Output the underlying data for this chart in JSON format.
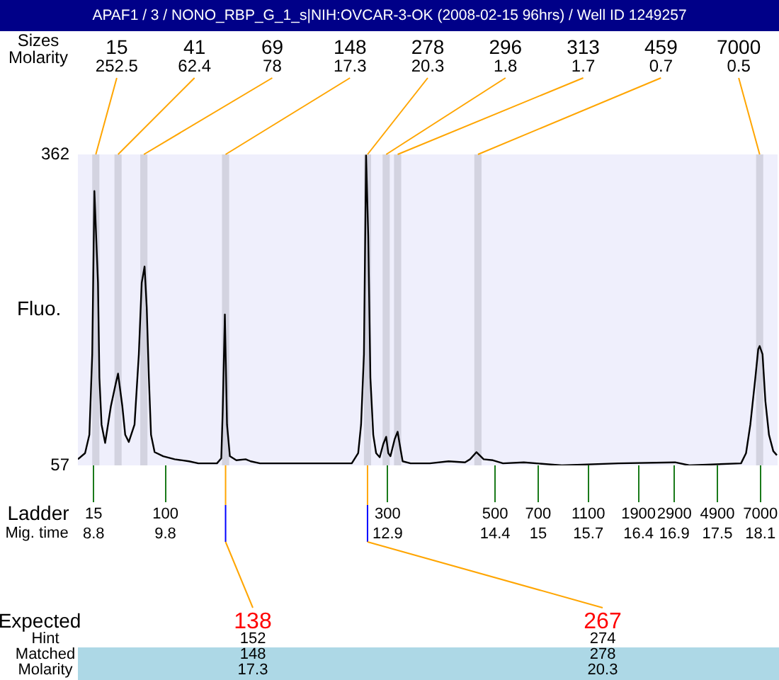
{
  "chart_data": {
    "type": "line",
    "title": "APAF1 / 3 / NONO_RBP_G_1_s|NIH:OVCAR-3-OK (2008-02-15 96hrs) / Well ID 1249257",
    "xlabel": "Mig. time",
    "ylabel": "Fluo.",
    "xlim": [
      8.58,
      18.34
    ],
    "xticks": [
      8.8,
      9.8,
      12.9,
      14.4,
      15,
      15.7,
      16.4,
      16.9,
      17.5,
      18.1
    ],
    "ylim": [
      57,
      362
    ],
    "yticks": [
      57,
      362
    ],
    "series": [
      {
        "color": "#000000",
        "x": [
          8.58,
          8.68,
          8.74,
          8.78,
          8.81,
          8.86,
          8.88,
          8.91,
          8.96,
          9.04,
          9.11,
          9.14,
          9.2,
          9.24,
          9.29,
          9.37,
          9.43,
          9.47,
          9.51,
          9.54,
          9.57,
          9.6,
          9.65,
          9.77,
          9.93,
          10.13,
          10.26,
          10.52,
          10.58,
          10.6,
          10.63,
          10.66,
          10.7,
          10.79,
          10.92,
          10.99,
          11.12,
          12.4,
          12.49,
          12.53,
          12.57,
          12.6,
          12.63,
          12.66,
          12.7,
          12.74,
          12.79,
          12.84,
          12.88,
          12.91,
          12.94,
          13.0,
          13.04,
          13.08,
          13.11,
          13.22,
          13.49,
          13.75,
          13.98,
          14.05,
          14.14,
          14.24,
          14.37,
          14.51,
          14.8,
          15.33,
          16.12,
          16.91,
          17.11,
          17.83,
          17.9,
          17.96,
          18.03,
          18.07,
          18.09,
          18.13,
          18.17,
          18.22,
          18.28,
          18.33
        ],
        "values": [
          63,
          69,
          87,
          166,
          326,
          236,
          143,
          97,
          79,
          115,
          138,
          147,
          115,
          87,
          80,
          97,
          166,
          236,
          252,
          212,
          143,
          87,
          70,
          66,
          63,
          61,
          59,
          59,
          64,
          110,
          205,
          97,
          66,
          62,
          63,
          61,
          59,
          59,
          69,
          97,
          166,
          361,
          282,
          143,
          87,
          69,
          65,
          78,
          85,
          69,
          66,
          83,
          90,
          73,
          61,
          59,
          59,
          61,
          60,
          63,
          70,
          63,
          62,
          59,
          60,
          57,
          59,
          60,
          57,
          59,
          69,
          97,
          143,
          171,
          174,
          166,
          120,
          87,
          71,
          67
        ]
      }
    ],
    "bands": [
      {
        "axis": "x",
        "from": 8.78,
        "to": 8.88,
        "label": "15",
        "color": "#d3d3e0"
      },
      {
        "axis": "x",
        "from": 9.09,
        "to": 9.19,
        "label": "41",
        "color": "#d3d3e0"
      },
      {
        "axis": "x",
        "from": 9.45,
        "to": 9.55,
        "label": "69",
        "color": "#d3d3e0"
      },
      {
        "axis": "x",
        "from": 10.59,
        "to": 10.69,
        "label": "148",
        "color": "#d3d3e0"
      },
      {
        "axis": "x",
        "from": 12.57,
        "to": 12.67,
        "label": "278",
        "color": "#d3d3e0"
      },
      {
        "axis": "x",
        "from": 12.83,
        "to": 12.93,
        "label": "296",
        "color": "#d3d3e0"
      },
      {
        "axis": "x",
        "from": 12.99,
        "to": 13.09,
        "label": "313",
        "color": "#d3d3e0"
      },
      {
        "axis": "x",
        "from": 14.11,
        "to": 14.21,
        "label": "459",
        "color": "#d3d3e0"
      },
      {
        "axis": "x",
        "from": 18.04,
        "to": 18.14,
        "label": "7000",
        "color": "#d3d3e0"
      }
    ],
    "annotations": [
      "Sizes",
      "Molarity",
      {
        "text": "252.5",
        "x": 8.83,
        "y": 362
      },
      {
        "text": "62.4",
        "x": 9.14,
        "y": 362
      },
      {
        "text": "78",
        "x": 9.5,
        "y": 362
      },
      {
        "text": "17.3",
        "x": 10.64,
        "y": 362
      },
      {
        "text": "20.3",
        "x": 12.62,
        "y": 362
      },
      {
        "text": "1.8",
        "x": 12.88,
        "y": 362
      },
      {
        "text": "1.7",
        "x": 13.04,
        "y": 362
      },
      {
        "text": "0.7",
        "x": 14.16,
        "y": 362
      },
      {
        "text": "0.5",
        "x": 18.09,
        "y": 362
      },
      "Ladder",
      "15",
      "100",
      "300",
      "500",
      "700",
      "1100",
      "1900",
      "2900",
      "4900",
      "7000",
      "Expected",
      "Hint",
      "Matched",
      "Molarity",
      "138",
      "152",
      "148",
      "17.3",
      "267",
      "274",
      "278",
      "20.3"
    ]
  }
}
